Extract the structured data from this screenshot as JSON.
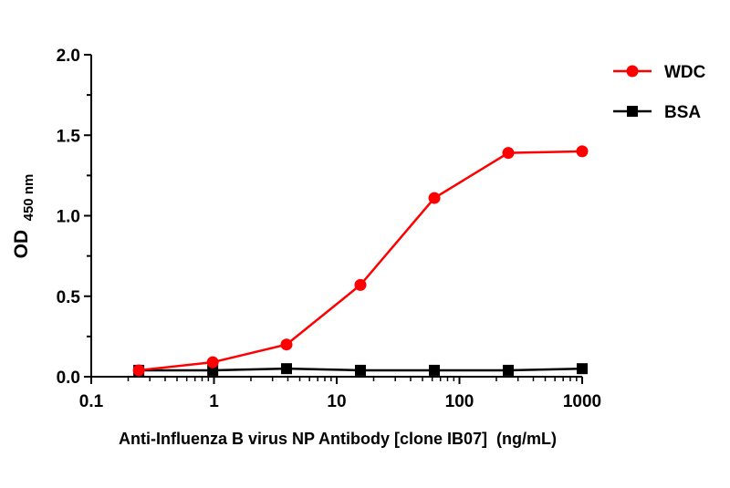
{
  "chart_data": {
    "type": "line",
    "xscale": "log",
    "xlim": [
      0.1,
      1000
    ],
    "ylim": [
      0,
      2.0
    ],
    "xticks": [
      "0.1",
      "1",
      "10",
      "100",
      "1000"
    ],
    "yticks": [
      "0.0",
      "0.5",
      "1.0",
      "1.5",
      "2.0"
    ],
    "xlabel": "Anti-Influenza B virus NP Antibody [clone IB07]  (ng/mL)",
    "ylabel_main": "OD",
    "ylabel_sub": "450 nm",
    "grid": false,
    "legend_position": "top-right",
    "series": [
      {
        "name": "WDC",
        "color": "#ff0000",
        "marker": "circle",
        "x": [
          0.244,
          0.977,
          3.9,
          15.6,
          62.5,
          250,
          1000
        ],
        "y": [
          0.04,
          0.09,
          0.2,
          0.57,
          1.11,
          1.39,
          1.4
        ]
      },
      {
        "name": "BSA",
        "color": "#000000",
        "marker": "square",
        "x": [
          0.244,
          0.977,
          3.9,
          15.6,
          62.5,
          250,
          1000
        ],
        "y": [
          0.04,
          0.04,
          0.05,
          0.04,
          0.04,
          0.04,
          0.05
        ]
      }
    ]
  }
}
